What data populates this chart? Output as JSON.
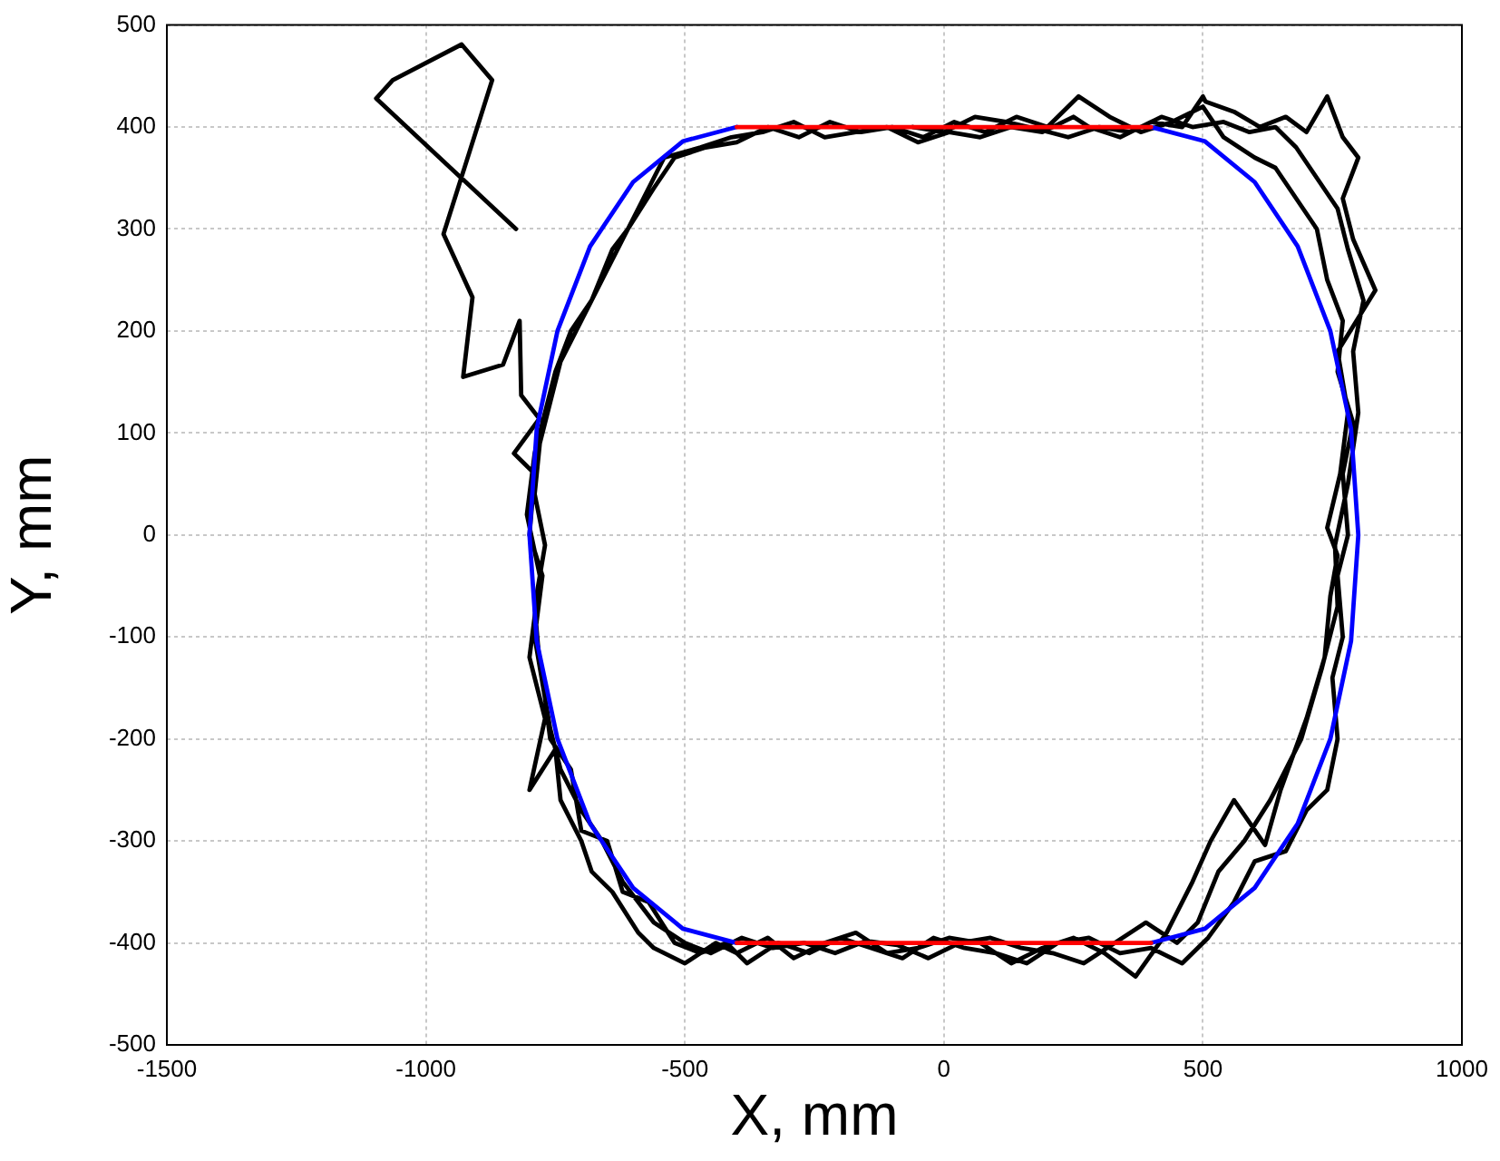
{
  "chart_data": {
    "type": "line",
    "xlabel": "X, mm",
    "ylabel": "Y, mm",
    "xlim": [
      -1500,
      1000
    ],
    "xticks": [
      -1500,
      -1000,
      -500,
      0,
      500,
      1000
    ],
    "ylim": [
      -500,
      500
    ],
    "yticks": [
      -500,
      -400,
      -300,
      -200,
      -100,
      0,
      100,
      200,
      300,
      400,
      500
    ],
    "grid": true,
    "legend": false,
    "marker": "none",
    "line_style": "solid",
    "series": [
      {
        "color": "#ff0000",
        "x": [
          -400,
          400
        ],
        "values": [
          400,
          400
        ]
      },
      {
        "color": "#ff0000",
        "x": [
          -400,
          400
        ],
        "values": [
          -400,
          -400
        ]
      },
      {
        "color": "#0000ff",
        "x": [
          400,
          504,
          600,
          683,
          746,
          786,
          800,
          786,
          746,
          683,
          600,
          504,
          400
        ],
        "values": [
          400,
          386,
          346,
          283,
          200,
          104,
          0,
          -104,
          -200,
          -283,
          -346,
          -386,
          -400
        ]
      },
      {
        "color": "#0000ff",
        "x": [
          -400,
          -504,
          -600,
          -683,
          -746,
          -786,
          -800,
          -786,
          -746,
          -683,
          -600,
          -504,
          -400
        ],
        "values": [
          400,
          386,
          346,
          283,
          200,
          104,
          0,
          -104,
          -200,
          -283,
          -346,
          -386,
          -400
        ]
      },
      {
        "color": "#000000",
        "x": [
          -826,
          -1096,
          -1064,
          -931,
          -872,
          -966,
          -910,
          -928,
          -851,
          -819,
          -816,
          -781,
          -830,
          -790,
          -800,
          -775,
          -790,
          -770,
          -760,
          -720,
          -700,
          -650,
          -620,
          -570,
          -520,
          -470,
          -420,
          -380,
          -320,
          -260,
          -200,
          -140,
          -80,
          -20,
          40,
          100,
          160,
          220,
          280,
          340,
          400,
          460,
          510,
          560,
          600,
          660,
          700,
          740,
          760,
          750,
          770,
          760,
          780,
          770,
          790,
          760,
          770,
          740,
          720,
          680,
          640,
          600,
          540,
          500,
          440,
          380,
          320,
          260,
          200,
          140,
          80,
          20,
          -40,
          -100,
          -160,
          -220,
          -280,
          -340,
          -400,
          -460,
          -520,
          -560,
          -610,
          -640,
          -680,
          -720,
          -750,
          -770,
          -790,
          -805,
          -780,
          -800,
          -770,
          -800,
          -750,
          -740,
          -700,
          -680,
          -640,
          -590,
          -560,
          -500,
          -440,
          -400,
          -340,
          -290,
          -230,
          -170,
          -110,
          -50,
          10,
          70,
          130,
          190,
          250,
          310,
          370,
          430,
          480,
          515,
          560,
          620,
          650,
          700,
          735,
          746,
          760,
          740,
          765,
          780,
          760,
          833,
          790,
          770,
          800,
          770,
          740,
          700,
          660,
          610,
          560,
          505,
          500,
          460,
          400,
          340,
          280,
          250,
          190,
          130,
          70,
          10,
          -50,
          -110,
          -170,
          -230,
          -290,
          -350,
          -410,
          -470,
          -540,
          -580,
          -620,
          -660,
          -700,
          -740,
          -760,
          -780,
          -790,
          -770,
          -790,
          -780,
          -760,
          -740,
          -700,
          -660,
          -620,
          -560,
          -500,
          -450,
          -390,
          -330,
          -270,
          -210,
          -150,
          -90,
          -30,
          30,
          90,
          150,
          210,
          270,
          330,
          390,
          450,
          490,
          530,
          580,
          630,
          690,
          730,
          760,
          755,
          780,
          800,
          790,
          810,
          780,
          760,
          720,
          680,
          640,
          590,
          540,
          480,
          420,
          360,
          300,
          240,
          180,
          120,
          60,
          0,
          -60
        ],
        "values": [
          300,
          428,
          446,
          481,
          446,
          295,
          233,
          155,
          167,
          210,
          137,
          114,
          80,
          60,
          0,
          -40,
          -100,
          -160,
          -200,
          -230,
          -290,
          -300,
          -350,
          -360,
          -400,
          -410,
          -400,
          -420,
          -400,
          -410,
          -395,
          -405,
          -415,
          -395,
          -405,
          -410,
          -420,
          -400,
          -395,
          -410,
          -405,
          -420,
          -395,
          -360,
          -320,
          -310,
          -270,
          -250,
          -200,
          -140,
          -100,
          -40,
          0,
          60,
          110,
          160,
          210,
          250,
          300,
          330,
          360,
          370,
          390,
          420,
          405,
          395,
          410,
          430,
          400,
          410,
          395,
          405,
          390,
          400,
          395,
          405,
          390,
          400,
          385,
          380,
          370,
          340,
          300,
          280,
          230,
          200,
          160,
          120,
          80,
          20,
          -40,
          -120,
          -180,
          -250,
          -210,
          -260,
          -300,
          -330,
          -350,
          -390,
          -405,
          -420,
          -400,
          -410,
          -395,
          -415,
          -400,
          -390,
          -410,
          -405,
          -395,
          -400,
          -420,
          -405,
          -395,
          -410,
          -433,
          -390,
          -340,
          -300,
          -260,
          -304,
          -250,
          -180,
          -120,
          -60,
          -20,
          7,
          60,
          120,
          180,
          240,
          290,
          330,
          370,
          390,
          430,
          395,
          410,
          400,
          415,
          425,
          430,
          400,
          405,
          390,
          400,
          410,
          395,
          400,
          390,
          395,
          385,
          400,
          395,
          390,
          405,
          395,
          390,
          380,
          370,
          330,
          290,
          250,
          210,
          170,
          130,
          90,
          40,
          -10,
          -70,
          -130,
          -190,
          -230,
          -270,
          -300,
          -340,
          -380,
          -400,
          -410,
          -395,
          -405,
          -400,
          -410,
          -398,
          -402,
          -415,
          -400,
          -395,
          -405,
          -410,
          -420,
          -400,
          -380,
          -400,
          -380,
          -330,
          -300,
          -260,
          -200,
          -130,
          -70,
          -10,
          50,
          120,
          180,
          230,
          280,
          320,
          350,
          380,
          400,
          395,
          405,
          400,
          410,
          395,
          400,
          390,
          398,
          405,
          410,
          395,
          400
        ]
      }
    ]
  }
}
